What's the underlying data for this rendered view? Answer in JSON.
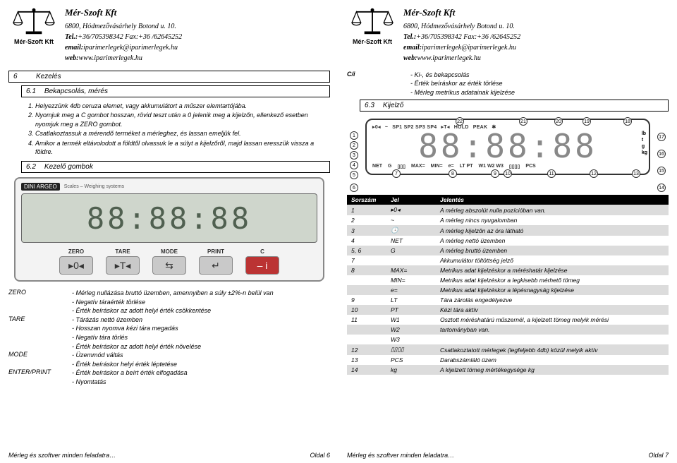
{
  "company": {
    "name": "Mér-Szoft Kft",
    "address": "6800, Hódmezővásárhely Botond u. 10.",
    "tel_label": "Tel.:",
    "tel": "+36/705398342 Fax:+36 /62645252",
    "email_label": "email:",
    "email": "iparimerlegek@iparimerlegek.hu",
    "web_label": "web:",
    "web": "www.iparimerlegek.hu",
    "logo_caption": "Mér-Szoft Kft"
  },
  "left": {
    "sec6_num": "6",
    "sec6_title": "Kezelés",
    "sec61_num": "6.1",
    "sec61_title": "Bekapcsolás, mérés",
    "steps": [
      "Helyezzünk 4db ceruza elemet, vagy akkumulátort a műszer elemtartójába.",
      "Nyomjuk meg a C gombot hosszan, rövid teszt után a 0 jelenik meg a kijelzőn, ellenkező esetben nyomjuk meg a ZERO gombot.",
      "Csatlakoztassuk a mérendő terméket a mérleghez, és lassan emeljük fel.",
      "Amikor a termék eltávolodott a földtől olvassuk le a súlyt a kijelzőről, majd lassan eresszük vissza a földre."
    ],
    "sec62_num": "6.2",
    "sec62_title": "Kezelő gombok",
    "panel": {
      "brand1": "DINI ARGEO",
      "brand2": "Scales – Weighing systems",
      "btn_labels": [
        "ZERO",
        "TARE",
        "MODE",
        "PRINT"
      ],
      "btn_glyphs": [
        "▸0◂",
        "▸T◂",
        "⇆",
        "↵"
      ],
      "power_label": "C",
      "power_glyph": "– i"
    },
    "btns": {
      "ZERO": [
        "- Mérleg nullázása bruttó üzemben, amennyiben a súly ±2%-n belül van",
        "- Negatív táraérték törlése",
        "- Érték beíráskor az adott helyi érték csökkentése"
      ],
      "TARE": [
        "- Tárázás nettó üzemben",
        "- Hosszan nyomva kézi tára megadás",
        "- Negatív tára törlés",
        "- Érték beíráskor az adott helyi érték növelése"
      ],
      "MODE": [
        "- Üzemmód váltás",
        "- Érték beíráskor helyi érték léptetése"
      ],
      "ENTER_PRINT": [
        "- Érték beíráskor a beírt érték elfogadása",
        "- Nyomtatás"
      ]
    },
    "footer_left": "Mérleg és szoftver minden feladatra…",
    "footer_right": "Oldal 6"
  },
  "right": {
    "ci_key": "C/i",
    "ci_vals": [
      "- Ki-, és bekapcsolás",
      "- Érték beíráskor az érték törlése",
      "- Mérleg metrikus adatainak kijelzése"
    ],
    "sec63_num": "6.3",
    "sec63_title": "Kijelző",
    "disp": {
      "row1": [
        "▸0◂",
        "~",
        "SP1 SP2 SP3 SP4",
        "▸T◂",
        "HOLD",
        "PEAK",
        "✱"
      ],
      "digits": "88:88:88",
      "row3": [
        "NET",
        "G",
        "▯▯▯",
        "MAX=",
        "MIN=",
        "e=",
        "LT PT",
        "W1 W2 W3",
        "▯▯▯▯",
        "PCS"
      ],
      "units": [
        "lb",
        "t",
        "g",
        "kg"
      ]
    },
    "table": {
      "head": [
        "Sorszám",
        "Jel",
        "Jelentés"
      ],
      "rows": [
        [
          "1",
          "▸0◂",
          "A mérleg abszolút nulla pozícióban van."
        ],
        [
          "2",
          "~",
          "A mérleg nincs nyugalomban"
        ],
        [
          "3",
          "🕓",
          "A mérleg kijelzőn az óra látható"
        ],
        [
          "4",
          "NET",
          "A mérleg nettó üzemben"
        ],
        [
          "5, 6",
          "G",
          "A mérleg bruttó üzemben"
        ],
        [
          "7",
          "",
          "Akkumulátor töltöttség jelző"
        ],
        [
          "8",
          "MAX=",
          "Metrikus adat kijelzéskor a méréshatár kijelzése"
        ],
        [
          "",
          "MIN=",
          "Metrikus adat kijelzéskor a legkisebb mérhető tömeg"
        ],
        [
          "",
          "e=",
          "Metrikus adat kijelzéskor a lépésnagyság kijelzése"
        ],
        [
          "9",
          "LT",
          "Tára zárolás engedélyezve"
        ],
        [
          "10",
          "PT",
          "Kézi tára aktív"
        ],
        [
          "11",
          "W1",
          "Osztott méréshatárú műszernél, a kijelzett tömeg melyik mérési"
        ],
        [
          "",
          "W2",
          "tartományban van."
        ],
        [
          "",
          "W3",
          ""
        ],
        [
          "12",
          "▯▯▯▯",
          "Csatlakoztatott mérlegek (legfeljebb 4db) közül melyik aktív"
        ],
        [
          "13",
          "PCS",
          "Darabszámláló üzem"
        ],
        [
          "14",
          "kg",
          "A kijelzett tömeg mértékegysége kg"
        ]
      ]
    },
    "footer_left": "Mérleg és szoftver minden feladatra…",
    "footer_right": "Oldal 7"
  }
}
